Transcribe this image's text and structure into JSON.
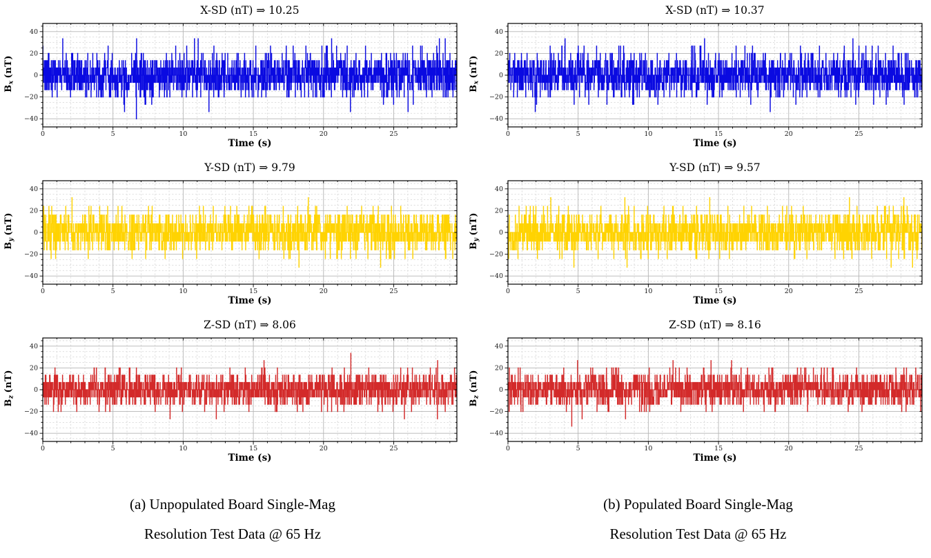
{
  "page": {
    "background": "#ffffff"
  },
  "captions": {
    "a": {
      "line1": "(a) Unpopulated Board Single-Mag",
      "line2": "Resolution Test Data @ 65 Hz"
    },
    "b": {
      "line1": "(b) Populated Board Single-Mag",
      "line2": "Resolution Test Data @ 65 Hz"
    }
  },
  "chart_data": [
    {
      "type": "line",
      "title": "X-SD (nT) ⇒ 10.25",
      "xlabel": "Time (s)",
      "ylabel": {
        "symbol": "B",
        "subscript": "x",
        "unit": "(nT)"
      },
      "series_color": "#0a0ae1",
      "sd_nT": 10.25,
      "sample_rate_hz": 65,
      "duration_s": 29.5,
      "noise_model": {
        "quant_step_nT": 6.7,
        "seed": 7
      },
      "xlim": [
        0,
        29.5
      ],
      "ylim": [
        -47.5,
        47.5
      ],
      "xticks": [
        0,
        5,
        10,
        15,
        20,
        25
      ],
      "yticks": [
        -40,
        -20,
        0,
        20,
        40
      ],
      "x_minor_step": 1,
      "y_minor_step": 5,
      "grid": true
    },
    {
      "type": "line",
      "title": "Y-SD (nT) ⇒ 9.79",
      "xlabel": "Time (s)",
      "ylabel": {
        "symbol": "B",
        "subscript": "y",
        "unit": "(nT)"
      },
      "series_color": "#ffd301",
      "sd_nT": 9.79,
      "sample_rate_hz": 65,
      "duration_s": 29.5,
      "noise_model": {
        "quant_step_nT": 8.0,
        "seed": 13
      },
      "xlim": [
        0,
        29.5
      ],
      "ylim": [
        -47.5,
        47.5
      ],
      "xticks": [
        0,
        5,
        10,
        15,
        20,
        25
      ],
      "yticks": [
        -40,
        -20,
        0,
        20,
        40
      ],
      "x_minor_step": 1,
      "y_minor_step": 5,
      "grid": true
    },
    {
      "type": "line",
      "title": "Z-SD (nT) ⇒ 8.06",
      "xlabel": "Time (s)",
      "ylabel": {
        "symbol": "B",
        "subscript": "z",
        "unit": "(nT)"
      },
      "series_color": "#d32a2a",
      "sd_nT": 8.06,
      "sample_rate_hz": 65,
      "duration_s": 29.5,
      "noise_model": {
        "quant_step_nT": 6.7,
        "seed": 21
      },
      "xlim": [
        0,
        29.5
      ],
      "ylim": [
        -47.5,
        47.5
      ],
      "xticks": [
        0,
        5,
        10,
        15,
        20,
        25
      ],
      "yticks": [
        -40,
        -20,
        0,
        20,
        40
      ],
      "x_minor_step": 1,
      "y_minor_step": 5,
      "grid": true
    },
    {
      "type": "line",
      "title": "X-SD (nT) ⇒ 10.37",
      "xlabel": "Time (s)",
      "ylabel": {
        "symbol": "B",
        "subscript": "x",
        "unit": "(nT)"
      },
      "series_color": "#0a0ae1",
      "sd_nT": 10.37,
      "sample_rate_hz": 65,
      "duration_s": 29.5,
      "noise_model": {
        "quant_step_nT": 6.7,
        "seed": 29
      },
      "xlim": [
        0,
        29.5
      ],
      "ylim": [
        -47.5,
        47.5
      ],
      "xticks": [
        0,
        5,
        10,
        15,
        20,
        25
      ],
      "yticks": [
        -40,
        -20,
        0,
        20,
        40
      ],
      "x_minor_step": 1,
      "y_minor_step": 5,
      "grid": true
    },
    {
      "type": "line",
      "title": "Y-SD (nT) ⇒ 9.57",
      "xlabel": "Time (s)",
      "ylabel": {
        "symbol": "B",
        "subscript": "y",
        "unit": "(nT)"
      },
      "series_color": "#ffd301",
      "sd_nT": 9.57,
      "sample_rate_hz": 65,
      "duration_s": 29.5,
      "noise_model": {
        "quant_step_nT": 8.0,
        "seed": 37
      },
      "xlim": [
        0,
        29.5
      ],
      "ylim": [
        -47.5,
        47.5
      ],
      "xticks": [
        0,
        5,
        10,
        15,
        20,
        25
      ],
      "yticks": [
        -40,
        -20,
        0,
        20,
        40
      ],
      "x_minor_step": 1,
      "y_minor_step": 5,
      "grid": true
    },
    {
      "type": "line",
      "title": "Z-SD (nT) ⇒ 8.16",
      "xlabel": "Time (s)",
      "ylabel": {
        "symbol": "B",
        "subscript": "z",
        "unit": "(nT)"
      },
      "series_color": "#d32a2a",
      "sd_nT": 8.16,
      "sample_rate_hz": 65,
      "duration_s": 29.5,
      "noise_model": {
        "quant_step_nT": 6.7,
        "seed": 43
      },
      "xlim": [
        0,
        29.5
      ],
      "ylim": [
        -47.5,
        47.5
      ],
      "xticks": [
        0,
        5,
        10,
        15,
        20,
        25
      ],
      "yticks": [
        -40,
        -20,
        0,
        20,
        40
      ],
      "x_minor_step": 1,
      "y_minor_step": 5,
      "grid": true
    }
  ],
  "style_colors": {
    "major_grid": "#b5b5b5",
    "minor_grid": "#d4d4d4",
    "spine": "#000000",
    "tick_label": "#1a1a1a"
  }
}
